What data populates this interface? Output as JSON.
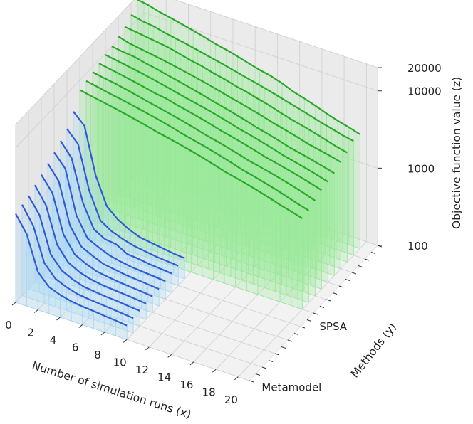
{
  "chart_data": {
    "type": "line",
    "projection": "3d-waterfall",
    "xlabel": "Number of simulation runs (x)",
    "ylabel": "Methods (y)",
    "zlabel": "Objective function value (z)",
    "x_ticks": [
      "0",
      "2",
      "4",
      "6",
      "8",
      "10",
      "12",
      "14",
      "16",
      "18",
      "20"
    ],
    "y_ticks": [
      "Metamodel",
      "SPSA"
    ],
    "z_ticks": [
      "100",
      "1000",
      "10000",
      "20000"
    ],
    "z_scale": "log",
    "xlim": [
      0,
      21
    ],
    "zlim": [
      100,
      20000
    ],
    "grid": true,
    "series": [
      {
        "group": "SPSA",
        "color": "#2aa82a",
        "fill": "#9be89b",
        "x": [
          0,
          1,
          2,
          3,
          4,
          5,
          6,
          7,
          8,
          9,
          10,
          11,
          12,
          13,
          14,
          15,
          16,
          17,
          18,
          19,
          20
        ],
        "values": [
          18000,
          17000,
          15500,
          14500,
          13500,
          12500,
          11500,
          10500,
          9800,
          9000,
          8200,
          7500,
          7000,
          6300,
          5500,
          5000,
          4500,
          4000,
          3600,
          3300,
          3000
        ]
      },
      {
        "group": "SPSA",
        "color": "#2aa82a",
        "fill": "#9be89b",
        "x": [
          0,
          1,
          2,
          3,
          4,
          5,
          6,
          7,
          8,
          9,
          10,
          11,
          12,
          13,
          14,
          15,
          16,
          17,
          18,
          19,
          20
        ],
        "values": [
          14000,
          13000,
          12500,
          11500,
          10800,
          10200,
          9500,
          8800,
          8200,
          7600,
          7000,
          6500,
          6000,
          5500,
          5000,
          4600,
          4200,
          3800,
          3500,
          3200,
          3000
        ]
      },
      {
        "group": "SPSA",
        "color": "#2aa82a",
        "fill": "#9be89b",
        "x": [
          0,
          1,
          2,
          3,
          4,
          5,
          6,
          7,
          8,
          9,
          10,
          11,
          12,
          13,
          14,
          15,
          16,
          17,
          18,
          19,
          20
        ],
        "values": [
          12000,
          11500,
          11000,
          10500,
          10000,
          9200,
          8500,
          8000,
          7300,
          6800,
          6200,
          5800,
          5300,
          4900,
          4400,
          4000,
          3700,
          3400,
          3100,
          2800,
          2600
        ]
      },
      {
        "group": "SPSA",
        "color": "#2aa82a",
        "fill": "#9be89b",
        "x": [
          0,
          1,
          2,
          3,
          4,
          5,
          6,
          7,
          8,
          9,
          10,
          11,
          12,
          13,
          14,
          15,
          16,
          17,
          18,
          19,
          20
        ],
        "values": [
          11000,
          10000,
          9500,
          9000,
          8500,
          8000,
          7500,
          7000,
          6500,
          6000,
          5500,
          5100,
          4700,
          4300,
          3900,
          3600,
          3300,
          3000,
          2800,
          2600,
          2400
        ]
      },
      {
        "group": "SPSA",
        "color": "#2aa82a",
        "fill": "#9be89b",
        "x": [
          0,
          1,
          2,
          3,
          4,
          5,
          6,
          7,
          8,
          9,
          10,
          11,
          12,
          13,
          14,
          15,
          16,
          17,
          18,
          19,
          20
        ],
        "values": [
          10000,
          9500,
          9200,
          8500,
          8000,
          7400,
          6900,
          6400,
          5900,
          5400,
          5000,
          4600,
          4200,
          3800,
          3500,
          3200,
          2900,
          2700,
          2500,
          2300,
          2100
        ]
      },
      {
        "group": "SPSA",
        "color": "#2aa82a",
        "fill": "#9be89b",
        "x": [
          0,
          1,
          2,
          3,
          4,
          5,
          6,
          7,
          8,
          9,
          10,
          11,
          12,
          13,
          14,
          15,
          16,
          17,
          18,
          19,
          20
        ],
        "values": [
          9500,
          9000,
          8500,
          8000,
          7500,
          7000,
          6500,
          6000,
          5600,
          5200,
          4800,
          4400,
          4000,
          3700,
          3400,
          3100,
          2800,
          2600,
          2400,
          2200,
          2000
        ]
      },
      {
        "group": "SPSA",
        "color": "#2aa82a",
        "fill": "#9be89b",
        "x": [
          0,
          1,
          2,
          3,
          4,
          5,
          6,
          7,
          8,
          9,
          10,
          11,
          12,
          13,
          14,
          15,
          16,
          17,
          18,
          19,
          20
        ],
        "values": [
          9000,
          8500,
          8000,
          7500,
          7000,
          6500,
          6200,
          5700,
          5300,
          4900,
          4500,
          4100,
          3800,
          3500,
          3200,
          2900,
          2700,
          2500,
          2300,
          2100,
          1900
        ]
      },
      {
        "group": "SPSA",
        "color": "#2aa82a",
        "fill": "#9be89b",
        "x": [
          0,
          1,
          2,
          3,
          4,
          5,
          6,
          7,
          8,
          9,
          10,
          11,
          12,
          13,
          14,
          15,
          16,
          17,
          18,
          19,
          20
        ],
        "values": [
          8500,
          8000,
          7600,
          7100,
          6600,
          6100,
          5700,
          5300,
          4900,
          4500,
          4100,
          3800,
          3500,
          3200,
          2900,
          2700,
          2500,
          2300,
          2100,
          1900,
          1700
        ]
      },
      {
        "group": "SPSA",
        "color": "#2aa82a",
        "fill": "#9be89b",
        "x": [
          0,
          1,
          2,
          3,
          4,
          5,
          6,
          7,
          8,
          9,
          10,
          11,
          12,
          13,
          14,
          15,
          16,
          17,
          18,
          19,
          20
        ],
        "values": [
          8000,
          7500,
          7000,
          6600,
          6200,
          5800,
          5400,
          5000,
          4600,
          4200,
          3900,
          3600,
          3300,
          3000,
          2700,
          2500,
          2300,
          2100,
          1900,
          1700,
          1550
        ]
      },
      {
        "group": "SPSA",
        "color": "#2aa82a",
        "fill": "#9be89b",
        "x": [
          0,
          1,
          2,
          3,
          4,
          5,
          6,
          7,
          8,
          9,
          10,
          11,
          12,
          13,
          14,
          15,
          16,
          17,
          18,
          19,
          20
        ],
        "values": [
          7500,
          7000,
          6600,
          6200,
          5800,
          5400,
          5000,
          4600,
          4300,
          4000,
          3700,
          3400,
          3100,
          2800,
          2600,
          2400,
          2200,
          2000,
          1800,
          1650,
          1500
        ]
      },
      {
        "group": "Metamodel",
        "color": "#2f5bd6",
        "fill": "#a8d8f5",
        "x": [
          0,
          1,
          2,
          3,
          4,
          5,
          6,
          7,
          8,
          9,
          10
        ],
        "values": [
          4800,
          3500,
          900,
          400,
          300,
          250,
          220,
          210,
          200,
          190,
          185
        ]
      },
      {
        "group": "Metamodel",
        "color": "#2f5bd6",
        "fill": "#a8d8f5",
        "x": [
          0,
          1,
          2,
          3,
          4,
          5,
          6,
          7,
          8,
          9,
          10
        ],
        "values": [
          3500,
          2500,
          700,
          320,
          260,
          230,
          210,
          200,
          190,
          185,
          180
        ]
      },
      {
        "group": "Metamodel",
        "color": "#2f5bd6",
        "fill": "#a8d8f5",
        "x": [
          0,
          1,
          2,
          3,
          4,
          5,
          6,
          7,
          8,
          9,
          10
        ],
        "values": [
          3000,
          2000,
          600,
          300,
          250,
          240,
          200,
          195,
          185,
          180,
          175
        ]
      },
      {
        "group": "Metamodel",
        "color": "#2f5bd6",
        "fill": "#a8d8f5",
        "x": [
          0,
          1,
          2,
          3,
          4,
          5,
          6,
          7,
          8,
          9,
          10
        ],
        "values": [
          2600,
          1800,
          500,
          280,
          240,
          210,
          195,
          185,
          180,
          175,
          170
        ]
      },
      {
        "group": "Metamodel",
        "color": "#2f5bd6",
        "fill": "#a8d8f5",
        "x": [
          0,
          1,
          2,
          3,
          4,
          5,
          6,
          7,
          8,
          9,
          10
        ],
        "values": [
          2300,
          1500,
          450,
          270,
          230,
          200,
          190,
          180,
          175,
          170,
          165
        ]
      },
      {
        "group": "Metamodel",
        "color": "#2f5bd6",
        "fill": "#a8d8f5",
        "x": [
          0,
          1,
          2,
          3,
          4,
          5,
          6,
          7,
          8,
          9,
          10
        ],
        "values": [
          2000,
          1300,
          420,
          260,
          220,
          195,
          185,
          178,
          172,
          168,
          162
        ]
      },
      {
        "group": "Metamodel",
        "color": "#2f5bd6",
        "fill": "#a8d8f5",
        "x": [
          0,
          1,
          2,
          3,
          4,
          5,
          6,
          7,
          8,
          9,
          10
        ],
        "values": [
          1800,
          1100,
          380,
          250,
          210,
          190,
          180,
          175,
          170,
          165,
          160
        ]
      },
      {
        "group": "Metamodel",
        "color": "#2f5bd6",
        "fill": "#a8d8f5",
        "x": [
          0,
          1,
          2,
          3,
          4,
          5,
          6,
          7,
          8,
          9,
          10
        ],
        "values": [
          1600,
          1000,
          350,
          240,
          205,
          185,
          178,
          172,
          168,
          162,
          158
        ]
      },
      {
        "group": "Metamodel",
        "color": "#2f5bd6",
        "fill": "#a8d8f5",
        "x": [
          0,
          1,
          2,
          3,
          4,
          5,
          6,
          7,
          8,
          9,
          10
        ],
        "values": [
          1500,
          900,
          330,
          230,
          200,
          182,
          175,
          170,
          165,
          160,
          155
        ]
      },
      {
        "group": "Metamodel",
        "color": "#2f5bd6",
        "fill": "#a8d8f5",
        "x": [
          0,
          1,
          2,
          3,
          4,
          5,
          6,
          7,
          8,
          9,
          10
        ],
        "values": [
          1400,
          850,
          310,
          220,
          195,
          180,
          172,
          168,
          162,
          158,
          152
        ]
      }
    ]
  }
}
